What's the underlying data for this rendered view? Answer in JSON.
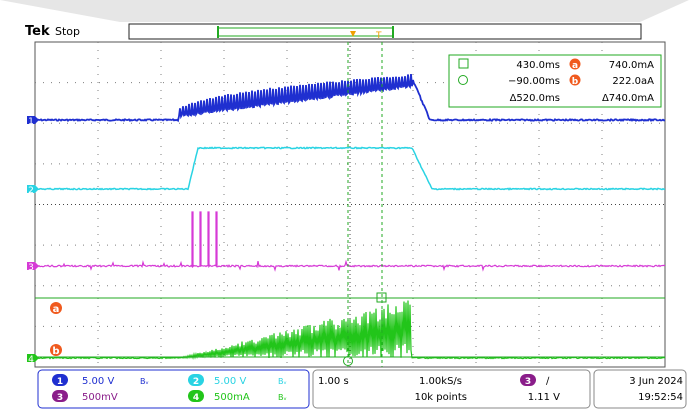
{
  "header": {
    "brand": "Tek",
    "run_state": "Stop"
  },
  "colors": {
    "ch1": "#1f2fd0",
    "ch2": "#29d3e3",
    "ch3": "#d63ad6",
    "ch4": "#22c51a",
    "cursor": "#22aa22",
    "marker": "#f05a1e",
    "grid": "#7f7f7f"
  },
  "channel_markers": {
    "ch1": "1",
    "ch2": "2",
    "ch3": "3",
    "ch4": "4"
  },
  "cursor_labels": {
    "a": "a",
    "b": "b"
  },
  "trigger_marker": "T",
  "readout": {
    "square_time": "430.0ms",
    "circle_time": "−90.00ms",
    "delta_time": "Δ520.0ms",
    "a_value": "740.0mA",
    "b_value": "222.0aA",
    "delta_value": "Δ740.0mA"
  },
  "footer": {
    "ch1_scale": "5.00 V",
    "ch2_scale": "5.00 V",
    "ch3_scale": "500mV",
    "ch4_scale": "500mA",
    "ch2_bw": "Bᵥ",
    "ch1_bw": "Bᵥ",
    "ch4_bw": "Bᵥ",
    "timebase": "1.00 s",
    "sample_rate": "1.00kS/s",
    "record_length": "10k points",
    "trigger_slope": "∕",
    "trigger_level": "1.11 V",
    "date": "3 Jun  2024",
    "time": "19:52:54"
  }
}
